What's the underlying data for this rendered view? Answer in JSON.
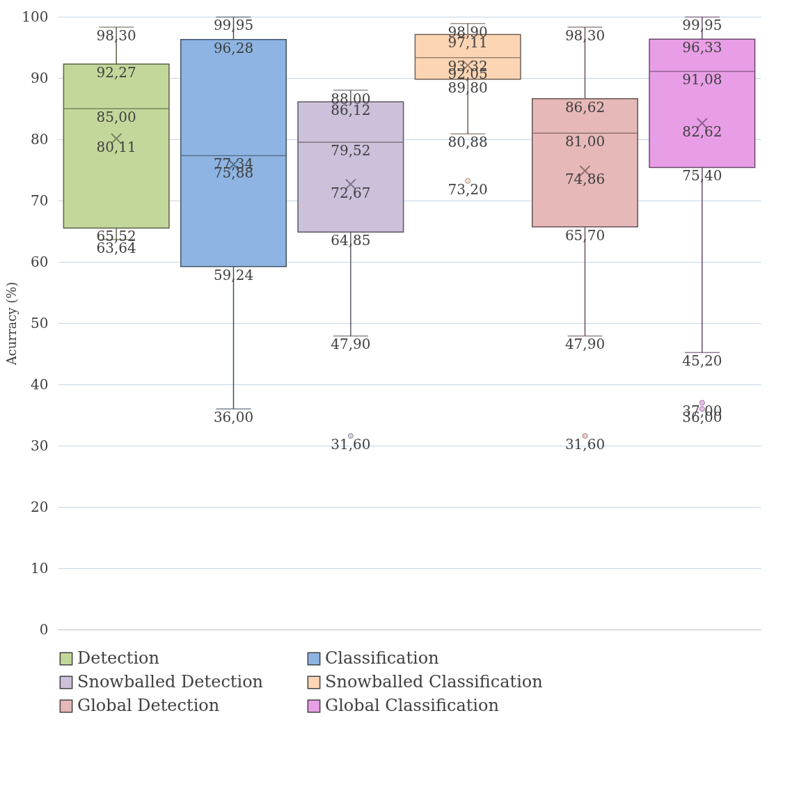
{
  "chart_data": {
    "type": "box",
    "ylabel": "Acurracy (%)",
    "categories": [
      null
    ],
    "ylim": [
      0,
      100
    ],
    "yticks": [
      0,
      10,
      20,
      30,
      40,
      50,
      60,
      70,
      80,
      90,
      100
    ],
    "grid": "y",
    "legend": "bottom",
    "tick_labels": "y",
    "series": [
      {
        "name": "Detection",
        "color": "#c4d79b",
        "boxes": [
          {
            "low": 63.64,
            "q1": 65.52,
            "median": 85.0,
            "q3": 92.27,
            "high": 98.3,
            "mean": 80.11
          }
        ]
      },
      {
        "name": "Classification",
        "color": "#8db4e2",
        "boxes": [
          {
            "low": 36.0,
            "q1": 59.24,
            "median": 77.34,
            "q3": 96.28,
            "high": 99.95,
            "mean": 75.88
          }
        ]
      },
      {
        "name": "Snowballed Detection",
        "color": "#ccc0da",
        "boxes": [
          {
            "low": 47.9,
            "q1": 64.85,
            "median": 79.52,
            "q3": 86.12,
            "high": 88.0,
            "mean": 72.67,
            "outliers": [
              31.6
            ]
          }
        ]
      },
      {
        "name": "Snowballed Classification",
        "color": "#fcd5b4",
        "boxes": [
          {
            "low": 80.88,
            "q1": 89.8,
            "median": 93.32,
            "q3": 97.11,
            "high": 98.9,
            "mean": 92.05,
            "outliers": [
              73.2
            ]
          }
        ]
      },
      {
        "name": "Global Detection",
        "color": "#e6b8b7",
        "boxes": [
          {
            "low": 47.9,
            "q1": 65.7,
            "median": 81.0,
            "q3": 86.62,
            "high": 98.3,
            "mean": 74.86,
            "outliers": [
              31.6
            ]
          }
        ]
      },
      {
        "name": "Global Classification",
        "color": "#e89ee6",
        "boxes": [
          {
            "low": 45.2,
            "q1": 75.4,
            "median": 91.08,
            "q3": 96.33,
            "high": 99.95,
            "mean": 82.62,
            "outliers": [
              37.0,
              36.0
            ]
          }
        ]
      }
    ],
    "annotations": [
      {
        "text": "98,30",
        "y": 98.3
      },
      {
        "text": "92,27",
        "y": 92.27
      },
      {
        "text": "85,00",
        "y": 85.0
      },
      {
        "text": "80,11",
        "y": 80.11
      },
      {
        "text": "65,52",
        "y": 65.52
      },
      {
        "text": "63,64",
        "y": 63.64
      },
      {
        "text": "99,95",
        "y": 99.95
      },
      {
        "text": "96,28",
        "y": 96.28
      },
      {
        "text": "77,34",
        "y": 77.34
      },
      {
        "text": "75,88",
        "y": 75.88
      },
      {
        "text": "59,24",
        "y": 59.24
      },
      {
        "text": "36,00",
        "y": 36.0
      },
      {
        "text": "88,00",
        "y": 88.0
      },
      {
        "text": "86,12",
        "y": 86.12
      },
      {
        "text": "79,52",
        "y": 79.52
      },
      {
        "text": "72,67",
        "y": 72.67
      },
      {
        "text": "64,85",
        "y": 64.85
      },
      {
        "text": "47,90",
        "y": 47.9
      },
      "31,60",
      {
        "text": "98,90",
        "y": 98.9
      },
      {
        "text": "97,11",
        "y": 97.11
      },
      {
        "text": "93,32",
        "y": 93.32
      },
      {
        "text": "92,05",
        "y": 92.05
      },
      {
        "text": "89,80",
        "y": 89.8
      },
      {
        "text": "80,88",
        "y": 80.88
      },
      "73,20",
      {
        "text": "98,30",
        "y": 98.3
      },
      {
        "text": "86,62",
        "y": 86.62
      },
      {
        "text": "81,00",
        "y": 81.0
      },
      {
        "text": "74,86",
        "y": 74.86
      },
      {
        "text": "65,70",
        "y": 65.7
      },
      {
        "text": "47,90",
        "y": 47.9
      },
      "31,60",
      {
        "text": "99,95",
        "y": 99.95
      },
      {
        "text": "96,33",
        "y": 96.33
      },
      {
        "text": "91,08",
        "y": 91.08
      },
      {
        "text": "82,62",
        "y": 82.62
      },
      {
        "text": "75,40",
        "y": 75.4
      },
      {
        "text": "45,20",
        "y": 45.2
      },
      "37,00",
      "36,00"
    ]
  }
}
